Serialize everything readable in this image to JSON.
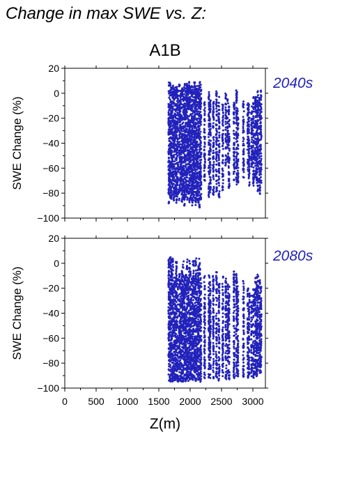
{
  "heading": "Change in max SWE vs. Z:",
  "chart_data": [
    {
      "type": "scatter",
      "title": "A1B",
      "panel_label": "2040s",
      "xlabel": "",
      "ylabel": "SWE Change (%)",
      "xlim": [
        0,
        3200
      ],
      "ylim": [
        -100,
        20
      ],
      "xticks": [
        0,
        500,
        1000,
        1500,
        2000,
        2500,
        3000
      ],
      "yticks": [
        -100,
        -80,
        -60,
        -40,
        -20,
        0,
        20
      ],
      "show_xtick_labels": false,
      "color": "#2222bb",
      "columns": [
        {
          "z": 1660,
          "ymin": -89,
          "ymax": 9
        },
        {
          "z": 1680,
          "ymin": -86,
          "ymax": 9
        },
        {
          "z": 1700,
          "ymin": -85,
          "ymax": 8
        },
        {
          "z": 1720,
          "ymin": -82,
          "ymax": 7
        },
        {
          "z": 1740,
          "ymin": -86,
          "ymax": 6
        },
        {
          "z": 1760,
          "ymin": -80,
          "ymax": 5
        },
        {
          "z": 1780,
          "ymin": -88,
          "ymax": 8
        },
        {
          "z": 1800,
          "ymin": -84,
          "ymax": 4
        },
        {
          "z": 1830,
          "ymin": -86,
          "ymax": 7
        },
        {
          "z": 1850,
          "ymin": -82,
          "ymax": 3
        },
        {
          "z": 1870,
          "ymin": -88,
          "ymax": 6
        },
        {
          "z": 1890,
          "ymin": -85,
          "ymax": 4
        },
        {
          "z": 1910,
          "ymin": -90,
          "ymax": 9
        },
        {
          "z": 1930,
          "ymin": -84,
          "ymax": 5
        },
        {
          "z": 1950,
          "ymin": -86,
          "ymax": 8
        },
        {
          "z": 1970,
          "ymin": -82,
          "ymax": 6
        },
        {
          "z": 1990,
          "ymin": -88,
          "ymax": 9
        },
        {
          "z": 2010,
          "ymin": -85,
          "ymax": 7
        },
        {
          "z": 2030,
          "ymin": -90,
          "ymax": 8
        },
        {
          "z": 2050,
          "ymin": -86,
          "ymax": 5
        },
        {
          "z": 2070,
          "ymin": -84,
          "ymax": 9
        },
        {
          "z": 2090,
          "ymin": -92,
          "ymax": 6
        },
        {
          "z": 2110,
          "ymin": -86,
          "ymax": 8
        },
        {
          "z": 2130,
          "ymin": -88,
          "ymax": 4
        },
        {
          "z": 2150,
          "ymin": -92,
          "ymax": 9
        },
        {
          "z": 2170,
          "ymin": -85,
          "ymax": 7
        },
        {
          "z": 2230,
          "ymin": -72,
          "ymax": -5
        },
        {
          "z": 2300,
          "ymin": -84,
          "ymax": 1
        },
        {
          "z": 2320,
          "ymin": -80,
          "ymax": -3
        },
        {
          "z": 2370,
          "ymin": -82,
          "ymax": -6
        },
        {
          "z": 2420,
          "ymin": -80,
          "ymax": 3
        },
        {
          "z": 2460,
          "ymin": -84,
          "ymax": -2
        },
        {
          "z": 2520,
          "ymin": -78,
          "ymax": -8
        },
        {
          "z": 2570,
          "ymin": -60,
          "ymax": 0
        },
        {
          "z": 2600,
          "ymin": -55,
          "ymax": -4
        },
        {
          "z": 2620,
          "ymin": -76,
          "ymax": -10
        },
        {
          "z": 2700,
          "ymin": -70,
          "ymax": -4
        },
        {
          "z": 2740,
          "ymin": -76,
          "ymax": 3
        },
        {
          "z": 2760,
          "ymin": -72,
          "ymax": -10
        },
        {
          "z": 2850,
          "ymin": -68,
          "ymax": -6
        },
        {
          "z": 2920,
          "ymin": -64,
          "ymax": -4
        },
        {
          "z": 2940,
          "ymin": -75,
          "ymax": -8
        },
        {
          "z": 2980,
          "ymin": -62,
          "ymax": -10
        },
        {
          "z": 3010,
          "ymin": -74,
          "ymax": -2
        },
        {
          "z": 3040,
          "ymin": -68,
          "ymax": 0
        },
        {
          "z": 3060,
          "ymin": -72,
          "ymax": -4
        },
        {
          "z": 3080,
          "ymin": -80,
          "ymax": 2
        },
        {
          "z": 3110,
          "ymin": -82,
          "ymax": -2
        },
        {
          "z": 3130,
          "ymin": -72,
          "ymax": 3
        }
      ]
    },
    {
      "type": "scatter",
      "title": "",
      "panel_label": "2080s",
      "xlabel": "Z(m)",
      "ylabel": "SWE Change (%)",
      "xlim": [
        0,
        3200
      ],
      "ylim": [
        -100,
        20
      ],
      "xticks": [
        0,
        500,
        1000,
        1500,
        2000,
        2500,
        3000
      ],
      "yticks": [
        -100,
        -80,
        -60,
        -40,
        -20,
        0,
        20
      ],
      "show_xtick_labels": true,
      "color": "#2222bb",
      "columns": [
        {
          "z": 1660,
          "ymin": -95,
          "ymax": 5
        },
        {
          "z": 1680,
          "ymin": -95,
          "ymax": 5
        },
        {
          "z": 1700,
          "ymin": -94,
          "ymax": 3
        },
        {
          "z": 1720,
          "ymin": -95,
          "ymax": 4
        },
        {
          "z": 1740,
          "ymin": -94,
          "ymax": -10
        },
        {
          "z": 1760,
          "ymin": -95,
          "ymax": -14
        },
        {
          "z": 1780,
          "ymin": -93,
          "ymax": 3
        },
        {
          "z": 1800,
          "ymin": -95,
          "ymax": -12
        },
        {
          "z": 1830,
          "ymin": -94,
          "ymax": -8
        },
        {
          "z": 1850,
          "ymin": -95,
          "ymax": -12
        },
        {
          "z": 1870,
          "ymin": -93,
          "ymax": -6
        },
        {
          "z": 1890,
          "ymin": -95,
          "ymax": 2
        },
        {
          "z": 1910,
          "ymin": -94,
          "ymax": -10
        },
        {
          "z": 1930,
          "ymin": -95,
          "ymax": -8
        },
        {
          "z": 1950,
          "ymin": -93,
          "ymax": 3
        },
        {
          "z": 1970,
          "ymin": -95,
          "ymax": -12
        },
        {
          "z": 1990,
          "ymin": -94,
          "ymax": 4
        },
        {
          "z": 2010,
          "ymin": -95,
          "ymax": -6
        },
        {
          "z": 2030,
          "ymin": -93,
          "ymax": -10
        },
        {
          "z": 2050,
          "ymin": -95,
          "ymax": 2
        },
        {
          "z": 2070,
          "ymin": -94,
          "ymax": -8
        },
        {
          "z": 2090,
          "ymin": -95,
          "ymax": 4
        },
        {
          "z": 2110,
          "ymin": -93,
          "ymax": -12
        },
        {
          "z": 2130,
          "ymin": -95,
          "ymax": 0
        },
        {
          "z": 2150,
          "ymin": -94,
          "ymax": 4
        },
        {
          "z": 2170,
          "ymin": -95,
          "ymax": -10
        },
        {
          "z": 2230,
          "ymin": -92,
          "ymax": -10
        },
        {
          "z": 2300,
          "ymin": -94,
          "ymax": -8
        },
        {
          "z": 2320,
          "ymin": -92,
          "ymax": -14
        },
        {
          "z": 2370,
          "ymin": -93,
          "ymax": -10
        },
        {
          "z": 2420,
          "ymin": -92,
          "ymax": -6
        },
        {
          "z": 2460,
          "ymin": -94,
          "ymax": -16
        },
        {
          "z": 2520,
          "ymin": -92,
          "ymax": -10
        },
        {
          "z": 2570,
          "ymin": -93,
          "ymax": -12
        },
        {
          "z": 2600,
          "ymin": -90,
          "ymax": -16
        },
        {
          "z": 2620,
          "ymin": -93,
          "ymax": -18
        },
        {
          "z": 2700,
          "ymin": -92,
          "ymax": -6
        },
        {
          "z": 2740,
          "ymin": -90,
          "ymax": -8
        },
        {
          "z": 2760,
          "ymin": -92,
          "ymax": -18
        },
        {
          "z": 2850,
          "ymin": -92,
          "ymax": -14
        },
        {
          "z": 2920,
          "ymin": -92,
          "ymax": -18
        },
        {
          "z": 2940,
          "ymin": -90,
          "ymax": -24
        },
        {
          "z": 2980,
          "ymin": -92,
          "ymax": -26
        },
        {
          "z": 3010,
          "ymin": -92,
          "ymax": -20
        },
        {
          "z": 3040,
          "ymin": -90,
          "ymax": -12
        },
        {
          "z": 3060,
          "ymin": -92,
          "ymax": -10
        },
        {
          "z": 3080,
          "ymin": -88,
          "ymax": -8
        },
        {
          "z": 3110,
          "ymin": -92,
          "ymax": -12
        },
        {
          "z": 3130,
          "ymin": -90,
          "ymax": -18
        }
      ]
    }
  ]
}
